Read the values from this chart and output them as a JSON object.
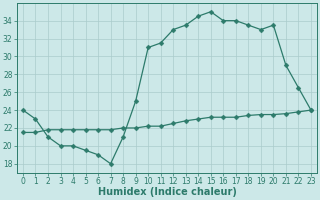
{
  "xlabel": "Humidex (Indice chaleur)",
  "line1_x": [
    0,
    1,
    2,
    3,
    4,
    5,
    6,
    7,
    8,
    9,
    10,
    11,
    12,
    13,
    14,
    15,
    16,
    17,
    18,
    19,
    20,
    21,
    22,
    23
  ],
  "line1_y": [
    24,
    23,
    21,
    20,
    20,
    19.5,
    19,
    18,
    21,
    25,
    31,
    31.5,
    33,
    33.5,
    34.5,
    35,
    34,
    34,
    33.5,
    33,
    33.5,
    29,
    26.5,
    24
  ],
  "line2_x": [
    0,
    1,
    2,
    3,
    4,
    5,
    6,
    7,
    8,
    9,
    10,
    11,
    12,
    13,
    14,
    15,
    16,
    17,
    18,
    19,
    20,
    21,
    22,
    23
  ],
  "line2_y": [
    21.5,
    21.5,
    21.8,
    21.8,
    21.8,
    21.8,
    21.8,
    21.8,
    22.0,
    22.0,
    22.2,
    22.2,
    22.5,
    22.8,
    23.0,
    23.2,
    23.2,
    23.2,
    23.4,
    23.5,
    23.5,
    23.6,
    23.8,
    24.0
  ],
  "line_color": "#2d7b6b",
  "bg_color": "#cce8e8",
  "grid_color": "#aacccc",
  "ylim": [
    17,
    36
  ],
  "xlim": [
    -0.5,
    23.5
  ],
  "yticks": [
    18,
    20,
    22,
    24,
    26,
    28,
    30,
    32,
    34
  ],
  "xticks": [
    0,
    1,
    2,
    3,
    4,
    5,
    6,
    7,
    8,
    9,
    10,
    11,
    12,
    13,
    14,
    15,
    16,
    17,
    18,
    19,
    20,
    21,
    22,
    23
  ],
  "tick_fontsize": 5.5,
  "label_fontsize": 7,
  "marker_size": 2.5,
  "line_width": 0.9
}
